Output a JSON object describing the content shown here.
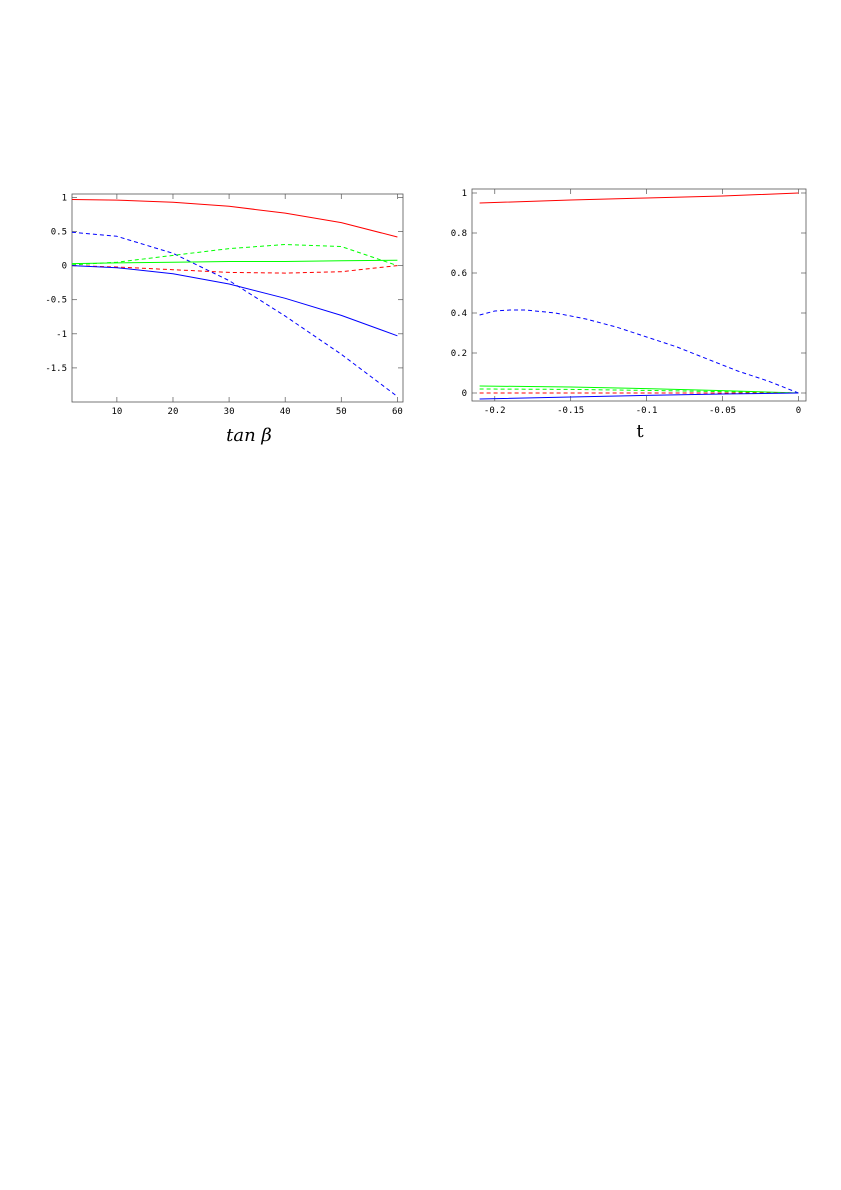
{
  "chart_data": [
    {
      "type": "line",
      "title": "",
      "xlabel": "tan β",
      "ylabel": "",
      "xlim": [
        2,
        61
      ],
      "ylim": [
        -2.0,
        1.05
      ],
      "xticks": [
        10,
        20,
        30,
        40,
        50,
        60
      ],
      "xtick_labels": [
        "10",
        "20",
        "30",
        "40",
        "50",
        "60"
      ],
      "yticks": [
        1,
        0.5,
        0,
        -0.5,
        -1,
        -1.5
      ],
      "ytick_labels": [
        "1",
        "0.5",
        "0",
        "-0.5",
        "-1",
        "-1.5"
      ],
      "grid": false,
      "legend": "none",
      "series": [
        {
          "color": "#ff0000",
          "dash": false,
          "x": [
            2,
            10,
            20,
            30,
            40,
            50,
            60
          ],
          "y": [
            0.97,
            0.96,
            0.93,
            0.87,
            0.77,
            0.63,
            0.42
          ]
        },
        {
          "color": "#0000ff",
          "dash": true,
          "x": [
            2,
            10,
            20,
            30,
            40,
            50,
            60
          ],
          "y": [
            0.49,
            0.43,
            0.18,
            -0.22,
            -0.74,
            -1.3,
            -1.92
          ]
        },
        {
          "color": "#00ff00",
          "dash": true,
          "x": [
            2,
            10,
            20,
            30,
            40,
            50,
            60
          ],
          "y": [
            0.01,
            0.05,
            0.15,
            0.25,
            0.31,
            0.28,
            0.0
          ]
        },
        {
          "color": "#ff0000",
          "dash": true,
          "x": [
            2,
            10,
            20,
            30,
            40,
            50,
            60
          ],
          "y": [
            0.0,
            -0.02,
            -0.06,
            -0.1,
            -0.11,
            -0.09,
            0.0
          ]
        },
        {
          "color": "#00ff00",
          "dash": false,
          "x": [
            2,
            10,
            20,
            30,
            40,
            50,
            60
          ],
          "y": [
            0.03,
            0.04,
            0.05,
            0.06,
            0.06,
            0.07,
            0.08
          ]
        },
        {
          "color": "#0000ff",
          "dash": false,
          "x": [
            2,
            10,
            20,
            30,
            40,
            50,
            60
          ],
          "y": [
            0.0,
            -0.03,
            -0.12,
            -0.27,
            -0.48,
            -0.73,
            -1.03
          ]
        }
      ]
    },
    {
      "type": "line",
      "title": "",
      "xlabel": "t",
      "ylabel": "",
      "xlim": [
        -0.215,
        0.005
      ],
      "ylim": [
        -0.04,
        1.02
      ],
      "xticks": [
        -0.2,
        -0.15,
        -0.1,
        -0.05,
        0
      ],
      "xtick_labels": [
        "-0.2",
        "-0.15",
        "-0.1",
        "-0.05",
        "0"
      ],
      "yticks": [
        1,
        0.8,
        0.6,
        0.4,
        0.2,
        0
      ],
      "ytick_labels": [
        "1",
        "0.8",
        "0.6",
        "0.4",
        "0.2",
        "0"
      ],
      "grid": false,
      "legend": "none",
      "series": [
        {
          "color": "#ff0000",
          "dash": false,
          "x": [
            -0.21,
            -0.15,
            -0.1,
            -0.05,
            0
          ],
          "y": [
            0.95,
            0.965,
            0.975,
            0.985,
            1.0
          ]
        },
        {
          "color": "#0000ff",
          "dash": true,
          "x": [
            -0.21,
            -0.2,
            -0.19,
            -0.18,
            -0.16,
            -0.14,
            -0.12,
            -0.1,
            -0.08,
            -0.06,
            -0.04,
            -0.02,
            0
          ],
          "y": [
            0.39,
            0.41,
            0.415,
            0.415,
            0.4,
            0.37,
            0.33,
            0.28,
            0.23,
            0.17,
            0.11,
            0.06,
            0.0
          ]
        },
        {
          "color": "#00ff00",
          "dash": false,
          "x": [
            -0.21,
            -0.15,
            -0.1,
            -0.05,
            0
          ],
          "y": [
            0.035,
            0.03,
            0.022,
            0.012,
            0.0
          ]
        },
        {
          "color": "#00ff00",
          "dash": true,
          "x": [
            -0.21,
            -0.15,
            -0.1,
            -0.05,
            0
          ],
          "y": [
            0.02,
            0.018,
            0.013,
            0.007,
            0.0
          ]
        },
        {
          "color": "#ff0000",
          "dash": true,
          "x": [
            -0.21,
            -0.15,
            -0.1,
            -0.05,
            0
          ],
          "y": [
            0.0,
            0.0,
            0.0,
            0.0,
            0.0
          ]
        },
        {
          "color": "#0000ff",
          "dash": false,
          "x": [
            -0.21,
            -0.15,
            -0.1,
            -0.05,
            0
          ],
          "y": [
            -0.03,
            -0.02,
            -0.012,
            -0.005,
            0.0
          ]
        }
      ]
    }
  ]
}
